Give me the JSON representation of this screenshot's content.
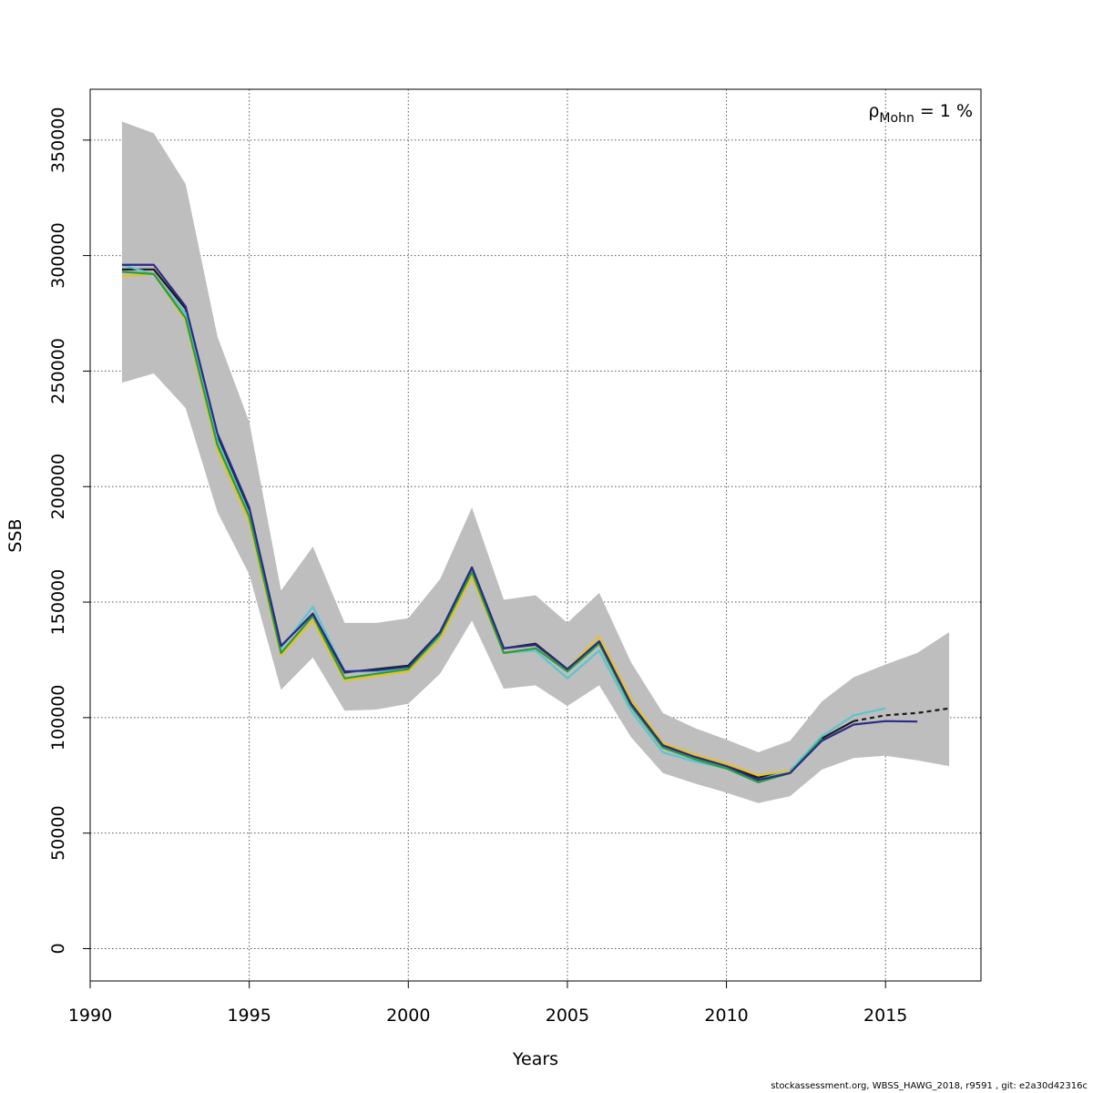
{
  "chart_data": {
    "type": "line",
    "title": "",
    "xlabel": "Years",
    "ylabel": "SSB",
    "xlim": [
      1990,
      2018
    ],
    "ylim": [
      -14000,
      372000
    ],
    "x_ticks": [
      1990,
      1995,
      2000,
      2005,
      2010,
      2015
    ],
    "x_tick_labels": [
      "1990",
      "1995",
      "2000",
      "2005",
      "2010",
      "2015"
    ],
    "y_ticks": [
      0,
      50000,
      100000,
      150000,
      200000,
      250000,
      300000,
      350000
    ],
    "y_tick_labels": [
      "0",
      "50000",
      "100000",
      "150000",
      "200000",
      "250000",
      "300000",
      "350000"
    ],
    "grid": true,
    "annotation": {
      "rho": "ρ",
      "sub": "Mohn",
      "rest": " = 1 %"
    },
    "confidence_band": {
      "x": [
        1991,
        1992,
        1993,
        1994,
        1995,
        1996,
        1997,
        1998,
        1999,
        2000,
        2001,
        2002,
        2003,
        2004,
        2005,
        2006,
        2007,
        2008,
        2009,
        2010,
        2011,
        2012,
        2013,
        2014,
        2015,
        2016,
        2017
      ],
      "upper": [
        358000,
        353000,
        331000,
        265000,
        228000,
        155000,
        174000,
        141000,
        141000,
        143000,
        160000,
        191000,
        151000,
        153000,
        141000,
        154000,
        124000,
        102000,
        95500,
        90500,
        85000,
        90000,
        107000,
        117500,
        123000,
        128000,
        137000
      ],
      "lower": [
        245000,
        249000,
        234000,
        189000,
        162000,
        112000,
        126000,
        103000,
        103500,
        106000,
        119000,
        142000,
        112500,
        114000,
        105000,
        114000,
        91500,
        76000,
        71500,
        67500,
        63000,
        66000,
        77500,
        82500,
        83500,
        81500,
        79000
      ]
    },
    "series": [
      {
        "color": "#1a1a1a",
        "dashed_after": 2014,
        "x": [
          1991,
          1992,
          1993,
          1994,
          1995,
          1996,
          1997,
          1998,
          1999,
          2000,
          2001,
          2002,
          2003,
          2004,
          2005,
          2006,
          2007,
          2008,
          2009,
          2010,
          2011,
          2012,
          2013,
          2014,
          2015,
          2016,
          2017
        ],
        "y": [
          294000,
          294000,
          277000,
          222000,
          190000,
          131000,
          145000,
          119500,
          121000,
          122500,
          137000,
          165000,
          130000,
          132000,
          121000,
          133000,
          106000,
          88000,
          83000,
          79000,
          74000,
          77000,
          91000,
          98500,
          101000,
          102000,
          104000
        ]
      },
      {
        "color": "#5bc4cf",
        "x": [
          1991,
          1992,
          1993,
          1994,
          1995,
          1996,
          1997,
          1998,
          1999,
          2000,
          2001,
          2002,
          2003,
          2004,
          2005,
          2006,
          2007,
          2008,
          2009,
          2010,
          2011,
          2012,
          2013,
          2014,
          2015
        ],
        "y": [
          296000,
          292000,
          275000,
          220000,
          188000,
          130000,
          148000,
          120000,
          120000,
          121000,
          135000,
          163000,
          128000,
          129000,
          117000,
          129000,
          103000,
          85000,
          81000,
          78000,
          73000,
          77000,
          92000,
          101000,
          104000
        ]
      },
      {
        "color": "#e8c120",
        "x": [
          1991,
          1992,
          1993,
          1994,
          1995,
          1996,
          1997,
          1998,
          1999,
          2000,
          2001,
          2002,
          2003,
          2004,
          2005,
          2006,
          2007,
          2008,
          2009,
          2010,
          2011,
          2012
        ],
        "y": [
          291000,
          292000,
          272000,
          216000,
          185000,
          127000,
          142000,
          116000,
          118000,
          120000,
          134000,
          161000,
          128000,
          130000,
          121000,
          135000,
          108000,
          89000,
          84000,
          80000,
          75000,
          77000
        ]
      },
      {
        "color": "#2a9d3a",
        "x": [
          1991,
          1992,
          1993,
          1994,
          1995,
          1996,
          1997,
          1998,
          1999,
          2000,
          2001,
          2002,
          2003,
          2004,
          2005,
          2006,
          2007,
          2008,
          2009,
          2010,
          2011,
          2012,
          2013
        ],
        "y": [
          293000,
          292000,
          273000,
          218000,
          187000,
          128000,
          144000,
          117000,
          119000,
          121000,
          136000,
          163000,
          128000,
          130000,
          120000,
          132000,
          105000,
          87000,
          82000,
          78000,
          72000,
          76000,
          91000
        ]
      },
      {
        "color": "#2b2a8a",
        "x": [
          1991,
          1992,
          1993,
          1994,
          1995,
          1996,
          1997,
          1998,
          1999,
          2000,
          2001,
          2002,
          2003,
          2004,
          2005,
          2006,
          2007,
          2008,
          2009,
          2010,
          2011,
          2012,
          2013,
          2014,
          2015,
          2016
        ],
        "y": [
          296000,
          296000,
          278000,
          223000,
          191000,
          131000,
          145000,
          120000,
          120500,
          122000,
          137000,
          165000,
          130000,
          131500,
          121000,
          133000,
          106000,
          88000,
          83000,
          79000,
          73000,
          76000,
          90000,
          97000,
          98500,
          98300
        ]
      }
    ]
  },
  "footer_text": "stockassessment.org, WBSS_HAWG_2018, r9591 , git: e2a30d42316c",
  "colors": {
    "band": "#bebebe",
    "grid": "#555555",
    "axis": "#000000"
  }
}
